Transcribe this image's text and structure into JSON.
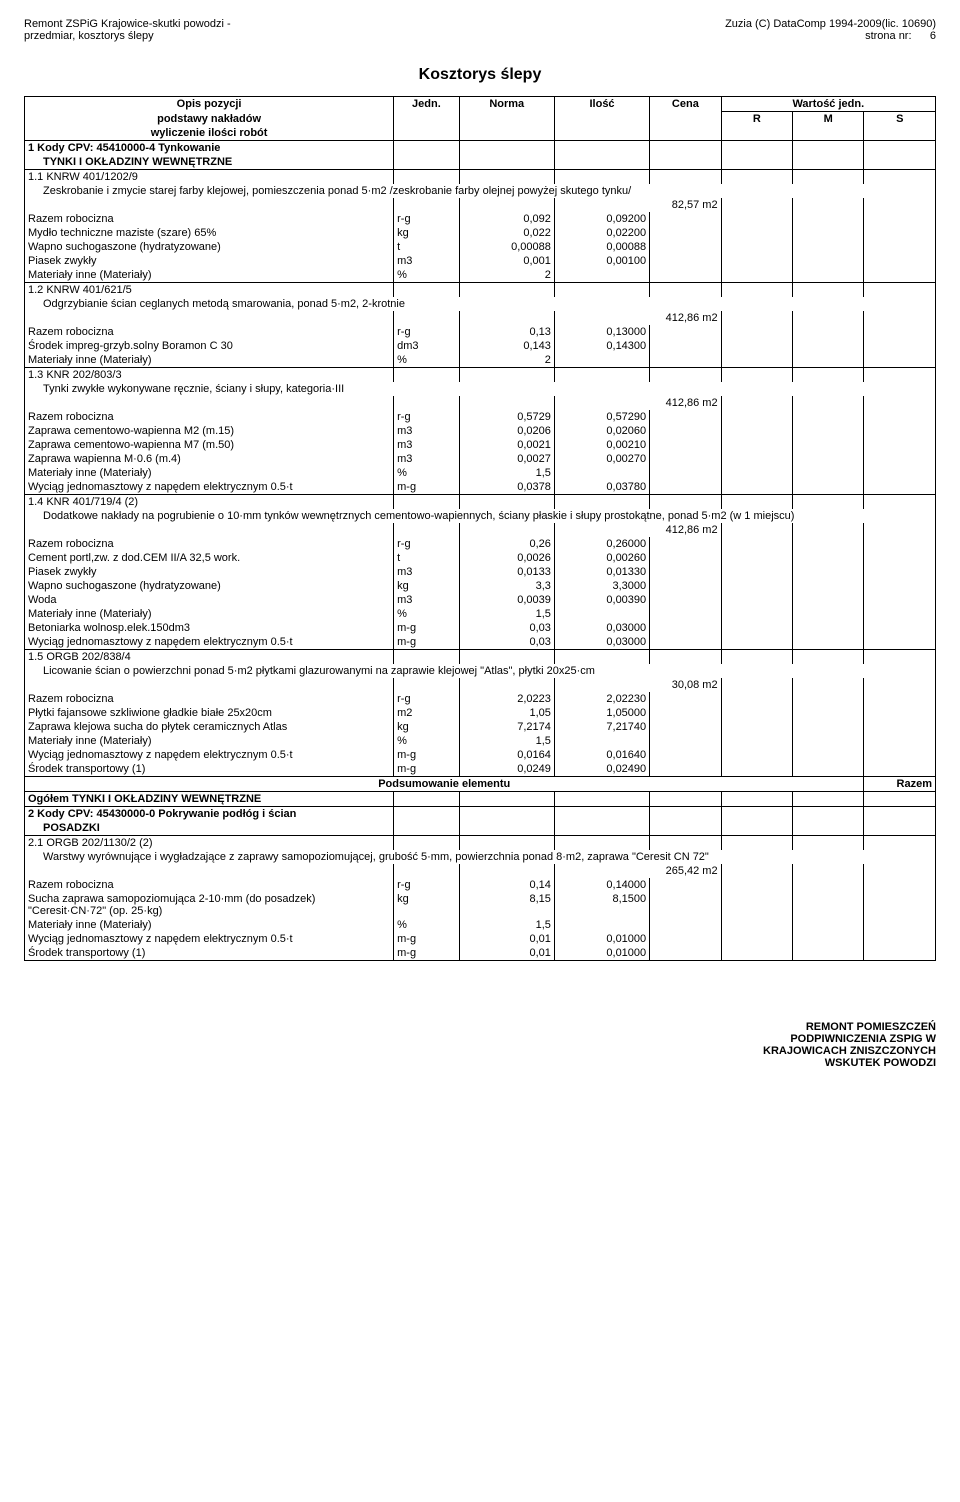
{
  "header": {
    "left1": "Remont  ZSPiG Krajowice-skutki powodzi -",
    "left2": "przedmiar, kosztorys ślepy",
    "right1": "Zuzia (C) DataComp 1994-2009(lic. 10690)",
    "right2_label": "strona nr:",
    "right2_page": "6"
  },
  "title": "Kosztorys ślepy",
  "cols": {
    "desc1": "Opis pozycji",
    "desc2": "podstawy nakładów",
    "desc3": "wyliczenie ilości robót",
    "unit": "Jedn.",
    "norm": "Norma",
    "qty": "Ilość",
    "cena": "Cena",
    "wart": "Wartość jedn.",
    "r": "R",
    "m": "M",
    "s": "S"
  },
  "s1": {
    "head1": "1 Kody CPV: 45410000-4  Tynkowanie",
    "head2": "TYNKI I OKŁADZINY WEWNĘTRZNE",
    "p11": {
      "code": "1.1 KNRW 401/1202/9",
      "desc": "Zeskrobanie i zmycie starej farby klejowej, pomieszczenia ponad 5·m2 /zeskrobanie farby olejnej powyżej skutego tynku/",
      "qty": "82,57 m2",
      "rows": [
        [
          "Razem robocizna",
          "r-g",
          "0,092",
          "0,09200"
        ],
        [
          "Mydło techniczne maziste (szare) 65%",
          "kg",
          "0,022",
          "0,02200"
        ],
        [
          "Wapno suchogaszone (hydratyzowane)",
          "t",
          "0,00088",
          "0,00088"
        ],
        [
          "Piasek zwykły",
          "m3",
          "0,001",
          "0,00100"
        ],
        [
          "Materiały inne (Materiały)",
          "%",
          "2",
          ""
        ]
      ]
    },
    "p12": {
      "code": "1.2 KNRW 401/621/5",
      "desc": "Odgrzybianie ścian ceglanych metodą smarowania, ponad 5·m2, 2-krotnie",
      "qty": "412,86 m2",
      "rows": [
        [
          "Razem robocizna",
          "r-g",
          "0,13",
          "0,13000"
        ],
        [
          "Środek impreg-grzyb.solny Boramon C 30",
          "dm3",
          "0,143",
          "0,14300"
        ],
        [
          "Materiały inne (Materiały)",
          "%",
          "2",
          ""
        ]
      ]
    },
    "p13": {
      "code": "1.3 KNR 202/803/3",
      "desc": "Tynki zwykłe wykonywane ręcznie, ściany i słupy, kategoria·III",
      "qty": "412,86 m2",
      "rows": [
        [
          "Razem robocizna",
          "r-g",
          "0,5729",
          "0,57290"
        ],
        [
          "Zaprawa cementowo-wapienna M2 (m.15)",
          "m3",
          "0,0206",
          "0,02060"
        ],
        [
          "Zaprawa cementowo-wapienna M7 (m.50)",
          "m3",
          "0,0021",
          "0,00210"
        ],
        [
          "Zaprawa wapienna M·0.6 (m.4)",
          "m3",
          "0,0027",
          "0,00270"
        ],
        [
          "Materiały inne (Materiały)",
          "%",
          "1,5",
          ""
        ],
        [
          "Wyciąg jednomasztowy z napędem elektrycznym 0.5·t",
          "m-g",
          "0,0378",
          "0,03780"
        ]
      ]
    },
    "p14": {
      "code": "1.4 KNR 401/719/4 (2)",
      "desc": "Dodatkowe nakłady na pogrubienie o 10·mm tynków wewnętrznych cementowo-wapiennych, ściany płaskie i słupy prostokątne, ponad 5·m2 (w 1 miejscu)",
      "qty": "412,86 m2",
      "rows": [
        [
          "Razem robocizna",
          "r-g",
          "0,26",
          "0,26000"
        ],
        [
          "Cement portl,zw. z dod.CEM II/A 32,5 work.",
          "t",
          "0,0026",
          "0,00260"
        ],
        [
          "Piasek zwykły",
          "m3",
          "0,0133",
          "0,01330"
        ],
        [
          "Wapno suchogaszone (hydratyzowane)",
          "kg",
          "3,3",
          "3,3000"
        ],
        [
          "Woda",
          "m3",
          "0,0039",
          "0,00390"
        ],
        [
          "Materiały inne (Materiały)",
          "%",
          "1,5",
          ""
        ],
        [
          "Betoniarka wolnosp.elek.150dm3",
          "m-g",
          "0,03",
          "0,03000"
        ],
        [
          "Wyciąg jednomasztowy z napędem elektrycznym 0.5·t",
          "m-g",
          "0,03",
          "0,03000"
        ]
      ]
    },
    "p15": {
      "code": "1.5 ORGB 202/838/4",
      "desc": "Licowanie ścian o powierzchni ponad 5·m2 płytkami glazurowanymi na zaprawie klejowej \"Atlas\", płytki 20x25·cm",
      "qty": "30,08 m2",
      "rows": [
        [
          "Razem robocizna",
          "r-g",
          "2,0223",
          "2,02230"
        ],
        [
          "Płytki fajansowe szkliwione gładkie białe 25x20cm",
          "m2",
          "1,05",
          "1,05000"
        ],
        [
          "Zaprawa klejowa sucha do płytek ceramicznych Atlas",
          "kg",
          "7,2174",
          "7,21740"
        ],
        [
          "Materiały inne (Materiały)",
          "%",
          "1,5",
          ""
        ],
        [
          "Wyciąg jednomasztowy z napędem elektrycznym 0.5·t",
          "m-g",
          "0,0164",
          "0,01640"
        ],
        [
          "Środek transportowy (1)",
          "m-g",
          "0,0249",
          "0,02490"
        ]
      ]
    },
    "sum_label": "Podsumowanie elementu",
    "sum_razem": "Razem",
    "total": "Ogółem TYNKI I OKŁADZINY WEWNĘTRZNE"
  },
  "s2": {
    "head1": "2 Kody CPV: 45430000-0  Pokrywanie podłóg i ścian",
    "head2": "POSADZKI",
    "p21": {
      "code": "2.1 ORGB 202/1130/2 (2)",
      "desc": "Warstwy wyrównujące i wygładzające z zaprawy samopoziomującej, grubość 5·mm, powierzchnia ponad 8·m2, zaprawa \"Ceresit CN 72\"",
      "qty": "265,42 m2",
      "rows": [
        [
          "Razem robocizna",
          "r-g",
          "0,14",
          "0,14000"
        ],
        [
          "Sucha zaprawa samopoziomująca 2-10·mm (do posadzek) \"Ceresit·CN·72\" (op. 25·kg)",
          "kg",
          "8,15",
          "8,1500"
        ],
        [
          "Materiały inne (Materiały)",
          "%",
          "1,5",
          ""
        ],
        [
          "Wyciąg jednomasztowy z napędem elektrycznym 0.5·t",
          "m-g",
          "0,01",
          "0,01000"
        ],
        [
          "Środek transportowy (1)",
          "m-g",
          "0,01",
          "0,01000"
        ]
      ]
    }
  },
  "footer": {
    "l1": "REMONT POMIESZCZEŃ",
    "l2": "PODPIWNICZENIA ZSPIG W",
    "l3": "KRAJOWICACH ZNISZCZONYCH",
    "l4": "WSKUTEK POWODZI"
  }
}
